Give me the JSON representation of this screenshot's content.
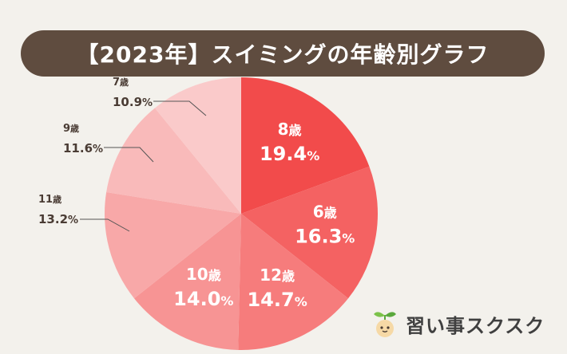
{
  "chart_data": {
    "type": "pie",
    "title": "【2023年】スイミングの年齢別グラフ",
    "start": "top, clockwise",
    "slices": [
      {
        "label": "8歳",
        "age": "8",
        "value": 19.4,
        "display": "19.4",
        "color": "#f24b4b",
        "label_style": "inside"
      },
      {
        "label": "6歳",
        "age": "6",
        "value": 16.3,
        "display": "16.3",
        "color": "#f46262",
        "label_style": "inside"
      },
      {
        "label": "12歳",
        "age": "12",
        "value": 14.7,
        "display": "14.7",
        "color": "#f67c7c",
        "label_style": "inside"
      },
      {
        "label": "10歳",
        "age": "10",
        "value": 14.0,
        "display": "14.0",
        "color": "#f79494",
        "label_style": "inside"
      },
      {
        "label": "11歳",
        "age": "11",
        "value": 13.2,
        "display": "13.2",
        "color": "#f8a8a8",
        "label_style": "outside"
      },
      {
        "label": "9歳",
        "age": "9",
        "value": 11.6,
        "display": "11.6",
        "color": "#f9baba",
        "label_style": "outside"
      },
      {
        "label": "7歳",
        "age": "7",
        "value": 10.9,
        "display": "10.9",
        "color": "#facaca",
        "label_style": "outside"
      }
    ],
    "unit": "%",
    "age_suffix": "歳"
  },
  "colors": {
    "background": "#f3f1ec",
    "banner": "#5f4c3f",
    "inside_label": "#ffffff",
    "outside_label": "#4a3c34",
    "leader": "#555555"
  },
  "logo": {
    "text": "習い事スクスク",
    "icon": "sprout-icon"
  }
}
